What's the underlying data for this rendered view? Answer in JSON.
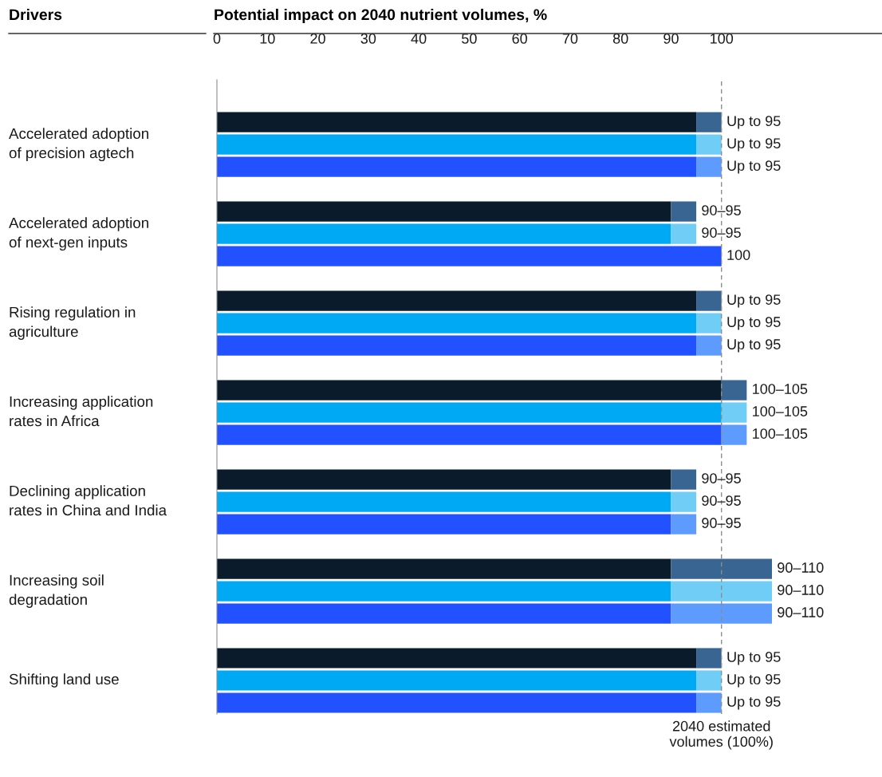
{
  "chart_data": {
    "type": "bar",
    "orientation": "horizontal",
    "stacked": true,
    "title": "Potential impact on 2040 nutrient volumes, %",
    "ylabel": "Drivers",
    "categories": [
      null,
      "Accelerated adoption\nof precision agtech",
      null,
      null,
      null,
      "Accelerated adoption\nof next-gen inputs",
      null,
      null,
      null,
      "Rising regulation in\nagriculture",
      null,
      null,
      null,
      "Increasing application\nrates in Africa",
      null,
      null,
      null,
      "Declining application\nrates in China and India",
      null,
      null,
      null,
      "Increasing soil\ndegradation",
      null,
      null,
      null,
      "Shifting land use",
      null
    ],
    "series": [
      {
        "colors": [
          "#0a1c2c",
          "#00a9f4",
          "#2251ff",
          null,
          "#0a1c2c",
          "#00a9f4",
          "#2251ff",
          null,
          "#0a1c2c",
          "#00a9f4",
          "#2251ff",
          null,
          "#0a1c2c",
          "#00a9f4",
          "#2251ff",
          null,
          "#0a1c2c",
          "#00a9f4",
          "#2251ff",
          null,
          "#0a1c2c",
          "#00a9f4",
          "#2251ff",
          null,
          "#0a1c2c",
          "#00a9f4",
          "#2251ff"
        ],
        "values": [
          95,
          95,
          95,
          null,
          90,
          90,
          100,
          null,
          95,
          95,
          95,
          null,
          100,
          100,
          100,
          null,
          90,
          90,
          90,
          null,
          90,
          90,
          90,
          null,
          95,
          95,
          95
        ],
        "value_labels": [
          null,
          null,
          null,
          null,
          null,
          null,
          "100",
          null,
          null,
          null,
          null,
          null,
          null,
          null,
          null,
          null,
          null,
          null,
          null,
          null,
          null,
          null,
          null,
          null,
          null,
          null,
          null
        ]
      },
      {
        "colors": [
          "#386592",
          "#6fcdf6",
          "#5d9bff",
          null,
          "#386592",
          "#6fcdf6",
          null,
          null,
          "#386592",
          "#6fcdf6",
          "#5d9bff",
          null,
          "#386592",
          "#6fcdf6",
          "#5d9bff",
          null,
          "#386592",
          "#6fcdf6",
          "#5d9bff",
          null,
          "#386592",
          "#6fcdf6",
          "#5d9bff",
          null,
          "#386592",
          "#6fcdf6",
          "#5d9bff"
        ],
        "values": [
          5,
          5,
          5,
          null,
          5,
          5,
          null,
          null,
          5,
          5,
          5,
          null,
          5,
          5,
          5,
          null,
          5,
          5,
          5,
          null,
          20,
          20,
          20,
          null,
          5,
          5,
          5
        ],
        "value_labels": [
          "Up to 95",
          "Up to 95",
          "Up to 95",
          null,
          "90–95",
          "90–95",
          null,
          null,
          "Up to 95",
          "Up to 95",
          "Up to 95",
          null,
          "100–105",
          "100–105",
          "100–105",
          null,
          "90–95",
          "90–95",
          "90–95",
          null,
          "90–110",
          "90–110",
          "90–110",
          null,
          "Up to 95",
          "Up to 95",
          "Up to 95"
        ]
      }
    ],
    "xlim": [
      0,
      110
    ],
    "xticks": [
      0,
      10,
      20,
      30,
      40,
      50,
      60,
      70,
      80,
      90,
      100
    ],
    "ref_lines": [
      {
        "axis": "x",
        "value": 100,
        "label": "2040 estimated\nvolumes (100%)",
        "color": "#8c8c8c",
        "line_style": "dashed"
      }
    ],
    "grid": false,
    "legend": false
  }
}
